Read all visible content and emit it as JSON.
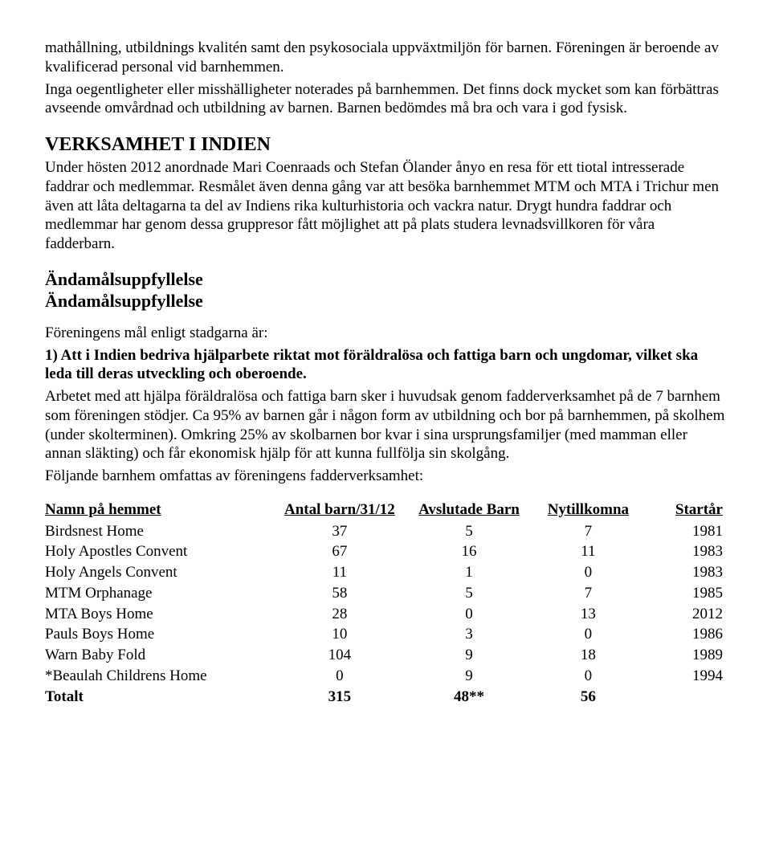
{
  "intro": {
    "p1": "mathållning, utbildnings kvalitén samt den psykosociala uppväxtmiljön för barnen. Föreningen är beroende av kvalificerad personal vid barnhemmen.",
    "p2": "Inga oegentligheter eller misshälligheter noterades på barnhemmen. Det finns dock mycket som kan förbättras avseende omvårdnad och utbildning av barnen. Barnen bedömdes må bra och vara i god fysisk."
  },
  "verksamhet": {
    "title": "VERKSAMHET I INDIEN",
    "body": "Under hösten 2012 anordnade Mari Coenraads och Stefan Ölander ånyo en resa för ett tiotal intresserade faddrar och medlemmar. Resmålet även denna gång var att besöka barnhemmet MTM och MTA i Trichur men även att låta deltagarna ta del av Indiens rika kulturhistoria och vackra natur. Drygt hundra faddrar och medlemmar har genom dessa gruppresor fått möjlighet att på plats studera levnadsvillkoren för våra fadderbarn."
  },
  "andamal": {
    "title1": "Ändamålsuppfyllelse",
    "title2": "Ändamålsuppfyllelse",
    "lead": "Föreningens mål enligt stadgarna är:",
    "point1_bold": "1) Att i Indien bedriva hjälparbete riktat mot föräldralösa och fattiga barn och ungdomar, vilket ska leda till deras utveckling och oberoende.",
    "body": "Arbetet med att hjälpa föräldralösa och fattiga barn sker i huvudsak genom fadderverksamhet på de 7 barnhem som föreningen stödjer. Ca 95% av barnen går i någon form av utbildning och bor på barnhemmen, på skolhem (under skolterminen). Omkring 25% av skolbarnen bor kvar i sina ursprungsfamiljer (med mamman eller annan släkting) och får ekonomisk hjälp för att kunna fullfölja sin skolgång.",
    "body2": "Följande barnhem omfattas av föreningens fadderverksamhet:"
  },
  "table": {
    "headers": {
      "name": "Namn på hemmet",
      "count": "Antal barn/31/12",
      "ended": "Avslutade Barn",
      "new": "Nytillkomna",
      "start": "Startår"
    },
    "rows": [
      {
        "name": "Birdsnest Home",
        "count": "37",
        "ended": "5",
        "new": "7",
        "start": "1981"
      },
      {
        "name": "Holy Apostles Convent",
        "count": "67",
        "ended": "16",
        "new": "11",
        "start": "1983"
      },
      {
        "name": "Holy Angels Convent",
        "count": "11",
        "ended": "1",
        "new": "0",
        "start": "1983"
      },
      {
        "name": "MTM Orphanage",
        "count": "58",
        "ended": "5",
        "new": "7",
        "start": "1985"
      },
      {
        "name": "MTA Boys Home",
        "count": "28",
        "ended": "0",
        "new": "13",
        "start": "2012"
      },
      {
        "name": "Pauls Boys Home",
        "count": "10",
        "ended": "3",
        "new": "0",
        "start": "1986"
      },
      {
        "name": "Warn Baby Fold",
        "count": "104",
        "ended": "9",
        "new": "18",
        "start": "1989"
      },
      {
        "name": "*Beaulah Childrens Home",
        "count": "0",
        "ended": "9",
        "new": "0",
        "start": "1994"
      }
    ],
    "total": {
      "label": "Totalt",
      "count": "315",
      "ended": "48**",
      "new": "56",
      "start": ""
    }
  }
}
